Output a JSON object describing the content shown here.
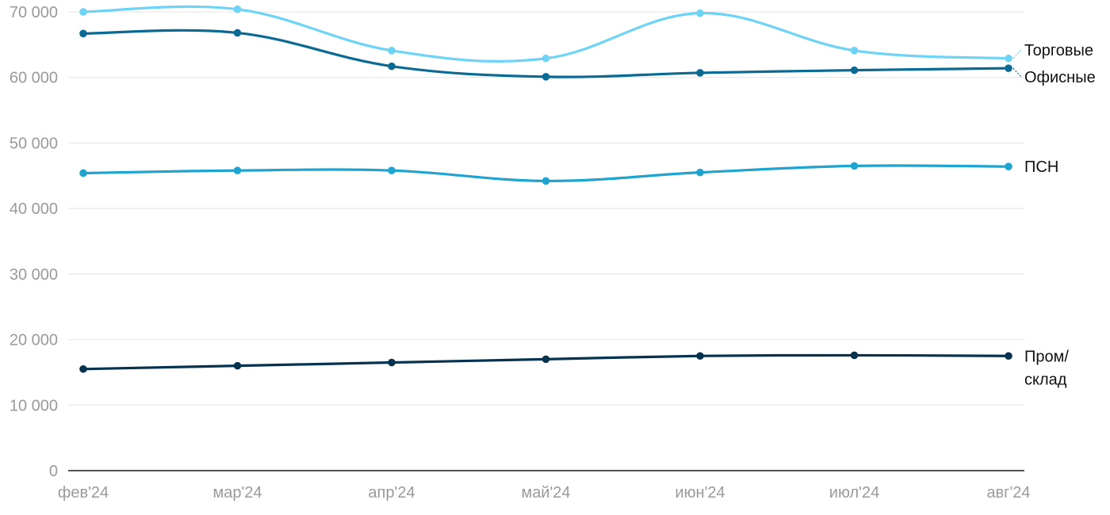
{
  "chart_data": {
    "type": "line",
    "title": "",
    "xlabel": "",
    "ylabel": "",
    "categories": [
      "фев'24",
      "мар'24",
      "апр'24",
      "май'24",
      "июн'24",
      "июл'24",
      "авг'24"
    ],
    "ylim": [
      0,
      70000
    ],
    "y_ticks": [
      0,
      10000,
      20000,
      30000,
      40000,
      50000,
      60000,
      70000
    ],
    "y_tick_labels": [
      "0",
      "10 000",
      "20 000",
      "30 000",
      "40 000",
      "50 000",
      "60 000",
      "70 000"
    ],
    "grid": true,
    "legend": "inline labels at line ends (right)",
    "series": [
      {
        "name": "Торговые",
        "label_lines": [
          "Торговые"
        ],
        "color": "#6dd3f7",
        "values": [
          70000,
          70400,
          64100,
          62900,
          69800,
          64100,
          62900
        ]
      },
      {
        "name": "Офисные",
        "label_lines": [
          "Офисные"
        ],
        "color": "#0a6a93",
        "values": [
          66700,
          66800,
          61700,
          60100,
          60700,
          61100,
          61400
        ]
      },
      {
        "name": "ПСН",
        "label_lines": [
          "ПСН"
        ],
        "color": "#1fa3cf",
        "values": [
          45400,
          45800,
          45800,
          44200,
          45500,
          46500,
          46400
        ]
      },
      {
        "name": "Пром/склад",
        "label_lines": [
          "Пром/",
          "склад"
        ],
        "color": "#05324f",
        "values": [
          15500,
          16000,
          16500,
          17000,
          17500,
          17600,
          17500
        ]
      }
    ]
  }
}
